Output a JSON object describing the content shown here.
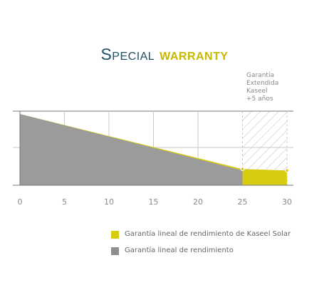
{
  "title": {
    "part1": "Special",
    "part2": "warranty"
  },
  "chart_data": {
    "type": "area",
    "x_ticks": [
      0,
      5,
      10,
      15,
      20,
      25,
      30
    ],
    "xlim": [
      0,
      30
    ],
    "grid": true,
    "legend_placement": "bottom",
    "extended_warranty": {
      "label_lines": [
        "Garantía",
        "Extendida",
        "Kaseel",
        "+5 años"
      ],
      "x_range": [
        25,
        30
      ]
    },
    "series": [
      {
        "name": "Garantía lineal de rendimiento de Kaseel Solar",
        "color": "#d8cc13",
        "x": [
          0,
          25,
          30
        ],
        "y": [
          100,
          80.7,
          80.2
        ]
      },
      {
        "name": "Garantía lineal de rendimiento",
        "color": "#9b9b9b",
        "x": [
          0,
          25
        ],
        "y": [
          100,
          80.2
        ]
      }
    ]
  },
  "colors": {
    "axis": "#7a7a7a",
    "grid": "#c8c8c8",
    "hatch": "#bdbdbd",
    "tick_text": "#8a8a8a"
  }
}
